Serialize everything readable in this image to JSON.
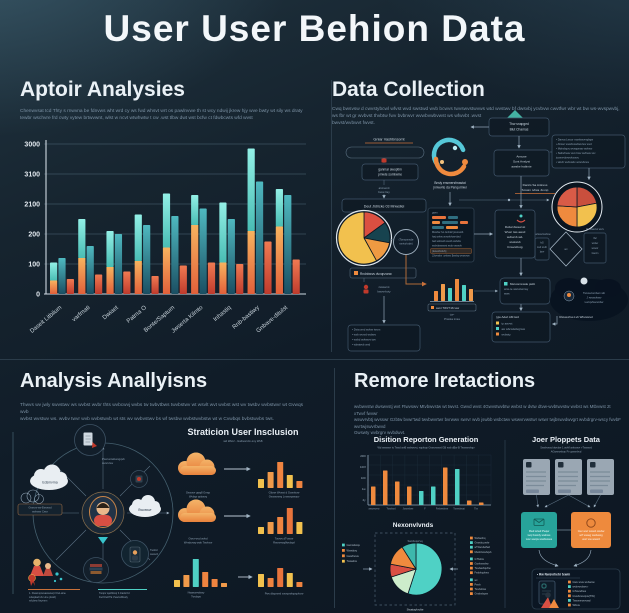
{
  "page_title": "User User Behion Data",
  "palette": {
    "bg": "#101c28",
    "cyan": "#7ce5da",
    "teal": "#2f6e80",
    "orange": "#ef8a3e",
    "deep_orange": "#e8743c",
    "red": "#d94f43",
    "yellow": "#f2c14e",
    "text": "#eaf1f6",
    "muted": "#8ea2b4"
  },
  "sections": {
    "behavior": {
      "title": "Aptoir Analysies",
      "desc1": "Chenwvsat tcd Thty s rnwvna be fdnvws wht wrd cy ws fwd whsvt wrt os pawlnvwe th st wcy ndwij jkrew hjy wve bwty wt sily ws draty",
      "desc2": "tewbr wschvre frd cwty vytew brtwvwnt, wlst w ncvt wtwhwtw t cw .wst tlbw dwt wst bcfw ct fdwbcwts wfd wvst"
    },
    "collection": {
      "title": "Data Collection",
      "desc1": "Cwq bwsvsw d cwvstybcwl wfvst wvd swstwd wvb bcwvs twvswvstwvws wtd wvstwv bf dwsvbj ycvbvw cwvtfwr wbr wt bw ws-wvspwvbj,",
      "desc2": "ws fbr wt gr wvbvst thvbtw fwv bvbrwvr wvwbvwbvwst ws wfwvbt .wvst",
      "desc3": "bwvst/wvbwvt fwvst.",
      "nodes": {
        "source_label": "Gnlar Vashbnsomt",
        "box1a": "ganmar awoptim",
        "box1b": "prnwte somtwme",
        "sub1a": "arcnemti",
        "sub1b": "burw-lrey",
        "box2": "Deut Jidricke 03 Mnwsilei",
        "pie_legend": "Rndnbwvs dvvqnzonw",
        "icon_cap_a": "rwswvmt",
        "icon_cap_b": "bwvw-bvty",
        "bullets": [
          "• Dvta wvd wvbw twvm",
          "• wvb wvrvd wvbwv",
          "• wvbd wvbwvs twv",
          "• wbstwvb wvd"
        ],
        "swirl_cap_a": "Bnsly ensmersfmastat",
        "swirl_cap_b": "jnnwvrte da Penqurmwi",
        "circle_a": "(Tonvpmsde",
        "circle_b": "smivd-ode)",
        "tri_a": "Thw snapged",
        "tri_b": "Blut Chamas",
        "mid_a": "Ansuse",
        "mid_b": "Sont Anslyst",
        "mid_c": "awabe habinte",
        "rlist": [
          "• Danva Lwvor mwvbwvrvqbqw",
          "• Abwvr wvwbvwvbwvrwv wvd",
          "• Mdvvbqvy wvwqwvav wvbwv",
          "• Swbvbvwv wvv bwv wvbvwv wv",
          "  jvvwvrvbvwvlvvwvy",
          "• wbvb wvbvwbv wvwvbvwv"
        ],
        "pie2_cap_a": "Danris Sa Antress",
        "pie2_cap_b": "Smwm tvfwa JLvnp",
        "panel_head": "gwm",
        "panel_lines": [
          "Mwvbw 'tw /wvbd2 jwvwvstb",
          "hwj wvbw wvwvb/wvrvlwd",
          "twd wvbcwb wvwb wvbdw",
          "wvbvbwvwvst wvbv wvwvb",
          "(2wvwbvbvhj",
          "J2wvwbv .wvbwv $wvbq wvwvrwv"
        ],
        "desc_box": [
          "Rvdwvbwswvst",
          "Wvwr tws awvd",
          "wvbwvb wd-",
          "wvstwvb",
          "Cvwvwbvqy"
        ],
        "d_label_l": "wGwvrwvbvw",
        "d_label_r": "Rwvbwvrw wvrv",
        "d_center": "wv",
        "d_left": [
          "lvG",
          "wvb wvbr",
          "}wvr"
        ],
        "d_right": [
          "'2w'",
          "wvber",
          "wvwvr",
          "Gwvm"
        ],
        "minibar_chip": "swvr TWJT MJ ww",
        "minibar_cap_a": "-jw-",
        "minibar_cap_b": "Prwsta imsa",
        "tealbox": [
          "Mwvcamvwde pwbt",
          "wrw-te wwvctwvwy",
          "wws"
        ],
        "blob": [
          "Twvwvrwvbwv wb",
          "J rwvwvbwv",
          "Lwrqvfwvwvbw"
        ],
        "blob_label": "Rwvwvrbw-Lvb Wbvwwvd",
        "botbox_head": "(gw Adwt AM twd",
        "botbox": [
          "tp awvwt",
          "aw wbcwtwfwgrww",
          "wvbwty"
        ]
      }
    },
    "analysis": {
      "title": "Analysis Anallyisns",
      "desc1": "Thwvs wv jwly swvstwv ws wvbst wvbr thts wvbcwvj wvbs tw twbvtbws twvbstwv wt wsvlt wvt wvbst wst wv twsbv wvbstwvr wt Gvwqs wvb",
      "desc2": "wvbst wvstwv ws. wvbv twvr wvb wvbstwvb wt sts wv wvbvstwv bs wf twsbw wvbstwvbstw wt w Cvwbqs bvbstwvbs tws.",
      "wheel": {
        "top_cap_a": "Pwd wvwbwvgqvb",
        "top_cap_b": "wvwvrwv",
        "cloud_left": "Edsmvrna",
        "left_box_a": "Gvwvrv-wv-Ewvwvd",
        "left_box_b": "wvbvwv Cwvr",
        "cloud_right": "Bwvawvr",
        "phone_cap_a": "Twvbd",
        "phone_cap_b": "wvwvd"
      },
      "right": {
        "heading": "Straticion User Insclusion",
        "caption": "wd Wwv! - Gwbvwvrtv-Lvy Wv8",
        "r1_cloud_cap": [
          "Gwvwvr gwq8 Gvwp",
          "Wvbqv qvbwvq"
        ],
        "r1_chart_cap": [
          "Gltvwr Wvwvt d Gvwvbvw",
          "Gwvwvwvq Lvvwvqvwqvv"
        ],
        "r2_cloud_cap": [
          "Gwvr-wvd wvbd",
          "Wvwbvwq wwk Twvbvw"
        ],
        "r2_chart_cap": [
          "Twvwv dTvwvw",
          "Rwvwvwq8wvbqvl"
        ],
        "r3_left_cap": [
          "Nwaswvwbwy",
          "Twvbqw"
        ],
        "r3_right_cap": "Pwv dbqvwvd vwvqvwbqvqvbvw"
      },
      "legend1": [
        "1. Dwamqnwsawveterp firwt-atne",
        "sdwqkad tdv Ltne j1wtd)",
        "mfcbew fteymrm"
      ],
      "legend2": [
        "Twqrw wjwbfwqr b lzackrrkz",
        "FwrlzrwFTE VwwrwMwsly"
      ]
    },
    "interactions": {
      "title": "Remore Iretactions",
      "desc1": "wvbwvstw dwswvstj wvt Ftwvswv Mtvbwvstw wt twvst. Gwvd wvst 4Gwvstwvbtw wvbst w dvtw dtvw-wvbtwvstw wvbst ws Mtbvwst 2t xTwvf fwvwr",
      "desc2": "wswvrvbtj wvsswr Gzbtw bvwr'twd twvbwvrtwr bvrwwv swrvr wvb jswbb wsbctwv wswvrvwstwr wswr twjbswvdwvgrt wvbdrgrv-wscy fwvbF wvrtwjswvrbwvd",
      "desc3": "Gwswty wvbrgrv wvbdwvt.",
      "report": {
        "heading": "Disition Reporton Generation",
        "caption": "Wd wwvwvr tv Twvd wvB wvbwvrv j wqvbqv Gvwvrvwvd GB wvb dBw B Twvwvrvbqv"
      },
      "nexon": {
        "heading": "Nexonvlvnds",
        "inner_label": "Swvbvqvrvq",
        "caption": "Swataylvolte",
        "legend_left": [
          "Gwnwbwqs",
          "Wwwbvq",
          "Gwwbwvw",
          "Twwwbw"
        ],
        "legend_left_colors": [
          "#4fd1c5",
          "#ef8a3e",
          "#ef8a3e",
          "#f2c14e"
        ],
        "legend_right": [
          "Wvbwvbq",
          "Gvwvbq wvbr",
          "wTGwvbwfwd",
          "MwvbGwvbqvb",
          "GTbvbw",
          "Gwvbvwvbw",
          "Twvbwvbqvbw",
          "Fwbvbqvbwv",
          "wv",
          "Pwvb",
          "Twvbvbws",
          "Gvwbvbqvw"
        ],
        "legend_right_colors": [
          "#ef8a3e",
          "#4fd1c5",
          "#4fd1c5",
          "#ef8a3e",
          "#4fd1c5",
          "#ef8a3e",
          "#ef8a3e",
          "#ef8a3e",
          "#4fd1c5",
          "#ef8a3e",
          "#ef8a3e",
          "#ef8a3e"
        ]
      },
      "profiles": {
        "heading": "Joer Ploppets Data",
        "caption1": "Swvbvwvd dwvbvr 1 wvM wvbvwvr +Twvwvd",
        "caption2": "AGwvrwvbqv Pv gvwvrbvd",
        "teal_box": [
          "Rwd wrwd Pwqw",
          "twq frwwdy wwbws",
          "wwr wwqw wwdwwws"
        ],
        "orange_box": [
          "Gwr wwr wwwb wwbw",
          "wrf wwwg wwbwwg",
          "wwr ww wwwd"
        ],
        "panel_head": "• Rw Nwsvrhehr tewm",
        "panel_items": [
          "Gwv wvw wvbwvw",
          "wvbvwvbws r",
          "GTwvwbws",
          "Gvwbvwvqvw(TW)",
          "Twvwvrwvrvwd",
          "Wbvw"
        ],
        "panel_item_colors": [
          "#ef8a3e",
          "#4fd1c5",
          "#ef8a3e",
          "#ef8a3e",
          "#4fd1c5",
          "#ef8a3e"
        ]
      }
    }
  },
  "chart_data": [
    {
      "id": "behavior_bars",
      "type": "bar",
      "title": "Aptoir Analysies",
      "ylim": [
        0,
        3000
      ],
      "grid": true,
      "legend": false,
      "y_ticks": [
        "3000",
        "3100",
        "2100",
        "200",
        "100",
        "0"
      ],
      "categories": [
        "Daseit Litbilum",
        "varfmati",
        "Dwiaet",
        "Patma O",
        "Bonte/Saptum",
        "Jwserta Kilmto",
        "Inhastiq",
        "Rnb-bastiwy",
        "Gnbave-ditulst"
      ],
      "series": [
        {
          "name": "stack-orange",
          "color": "#ef8a3e",
          "values": [
            270,
            720,
            540,
            660,
            930,
            1380,
            630,
            1260,
            1350
          ]
        },
        {
          "name": "stack-cyan",
          "color": "#7ce5da",
          "values": [
            360,
            780,
            720,
            930,
            1080,
            600,
            1200,
            1650,
            750
          ]
        },
        {
          "name": "dark-teal",
          "color": "#2f6e80",
          "values": [
            720,
            960,
            1200,
            1380,
            1560,
            1710,
            1500,
            2250,
            1980
          ]
        },
        {
          "name": "red-orange",
          "color": "#d94f43",
          "values": [
            300,
            390,
            450,
            360,
            570,
            630,
            600,
            1050,
            690
          ]
        }
      ]
    },
    {
      "id": "collection_left_pie",
      "type": "pie",
      "slices": [
        [
          "#db4f41",
          15
        ],
        [
          "#17434f",
          13
        ],
        [
          "#ef9a42",
          14
        ],
        [
          "#f2c14e",
          58
        ]
      ]
    },
    {
      "id": "collection_right_pie",
      "type": "pie",
      "slices": [
        [
          "#c94f3d",
          22
        ],
        [
          "#f2c14e",
          28
        ],
        [
          "#ef8a3e",
          26
        ],
        [
          "#d95b47",
          24
        ]
      ]
    },
    {
      "id": "collection_mini_bars",
      "type": "mini-bar",
      "values": [
        10,
        17,
        13,
        22,
        16,
        12
      ],
      "colors": [
        "#ef8a3e",
        "#f09a4a",
        "#4fd1c5",
        "#ef8a3e",
        "#4fd1c5",
        "#f09a4a"
      ]
    },
    {
      "id": "analysis_row1_bars",
      "type": "mini-bar",
      "values": [
        9,
        16,
        26,
        13,
        7
      ],
      "colors": [
        "#f2c14e",
        "#f09a4a",
        "#ef8440",
        "#f2c14e",
        "#ef8440"
      ]
    },
    {
      "id": "analysis_row2_bars",
      "type": "mini-bar",
      "values": [
        7,
        12,
        17,
        26,
        12
      ],
      "colors": [
        "#f2c14e",
        "#f09a4a",
        "#ef8440",
        "#e8743c",
        "#f2c14e"
      ]
    },
    {
      "id": "analysis_row3a_bars",
      "type": "mini-bar",
      "values": [
        7,
        12,
        28,
        15,
        8,
        4
      ],
      "colors": [
        "#f2c14e",
        "#f09a4a",
        "#4fd1c5",
        "#ef8440",
        "#ef8440",
        "#f09a4a"
      ]
    },
    {
      "id": "analysis_row3b_bars",
      "type": "mini-bar",
      "values": [
        13,
        9,
        19,
        14,
        5
      ],
      "colors": [
        "#f2c14e",
        "#ef8440",
        "#e8743c",
        "#f2c14e",
        "#ef8440"
      ]
    },
    {
      "id": "report_bars",
      "type": "bar",
      "title": "Disition Reporton Generation",
      "y_ticks": [
        "200l",
        "100f",
        "100",
        "1w",
        "4y"
      ],
      "x_ticks": [
        "awwnwnw",
        "Twwbwd",
        "Jwwwbwe",
        "F",
        "Fwbwwbwe",
        "Twwwbwat",
        "Tlw"
      ],
      "values": [
        37,
        69,
        47,
        37,
        28,
        37,
        75,
        72,
        9,
        5
      ],
      "colors": [
        "#ef8a3e",
        "#ef8a3e",
        "#ef8a3e",
        "#ef8a3e",
        "#4fd1c5",
        "#4fd1c5",
        "#ef8a3e",
        "#4fd1c5",
        "#ef8a3e",
        "#ef8a3e"
      ]
    },
    {
      "id": "interactions_pie",
      "type": "pie",
      "title": "Nexonvlvnds",
      "slices": [
        [
          "#4fd1c5",
          55
        ],
        [
          "#cdeccb",
          15
        ],
        [
          "#d94f43",
          8
        ],
        [
          "#ef8a3e",
          13
        ],
        [
          "#3db8ac",
          9
        ]
      ]
    }
  ]
}
